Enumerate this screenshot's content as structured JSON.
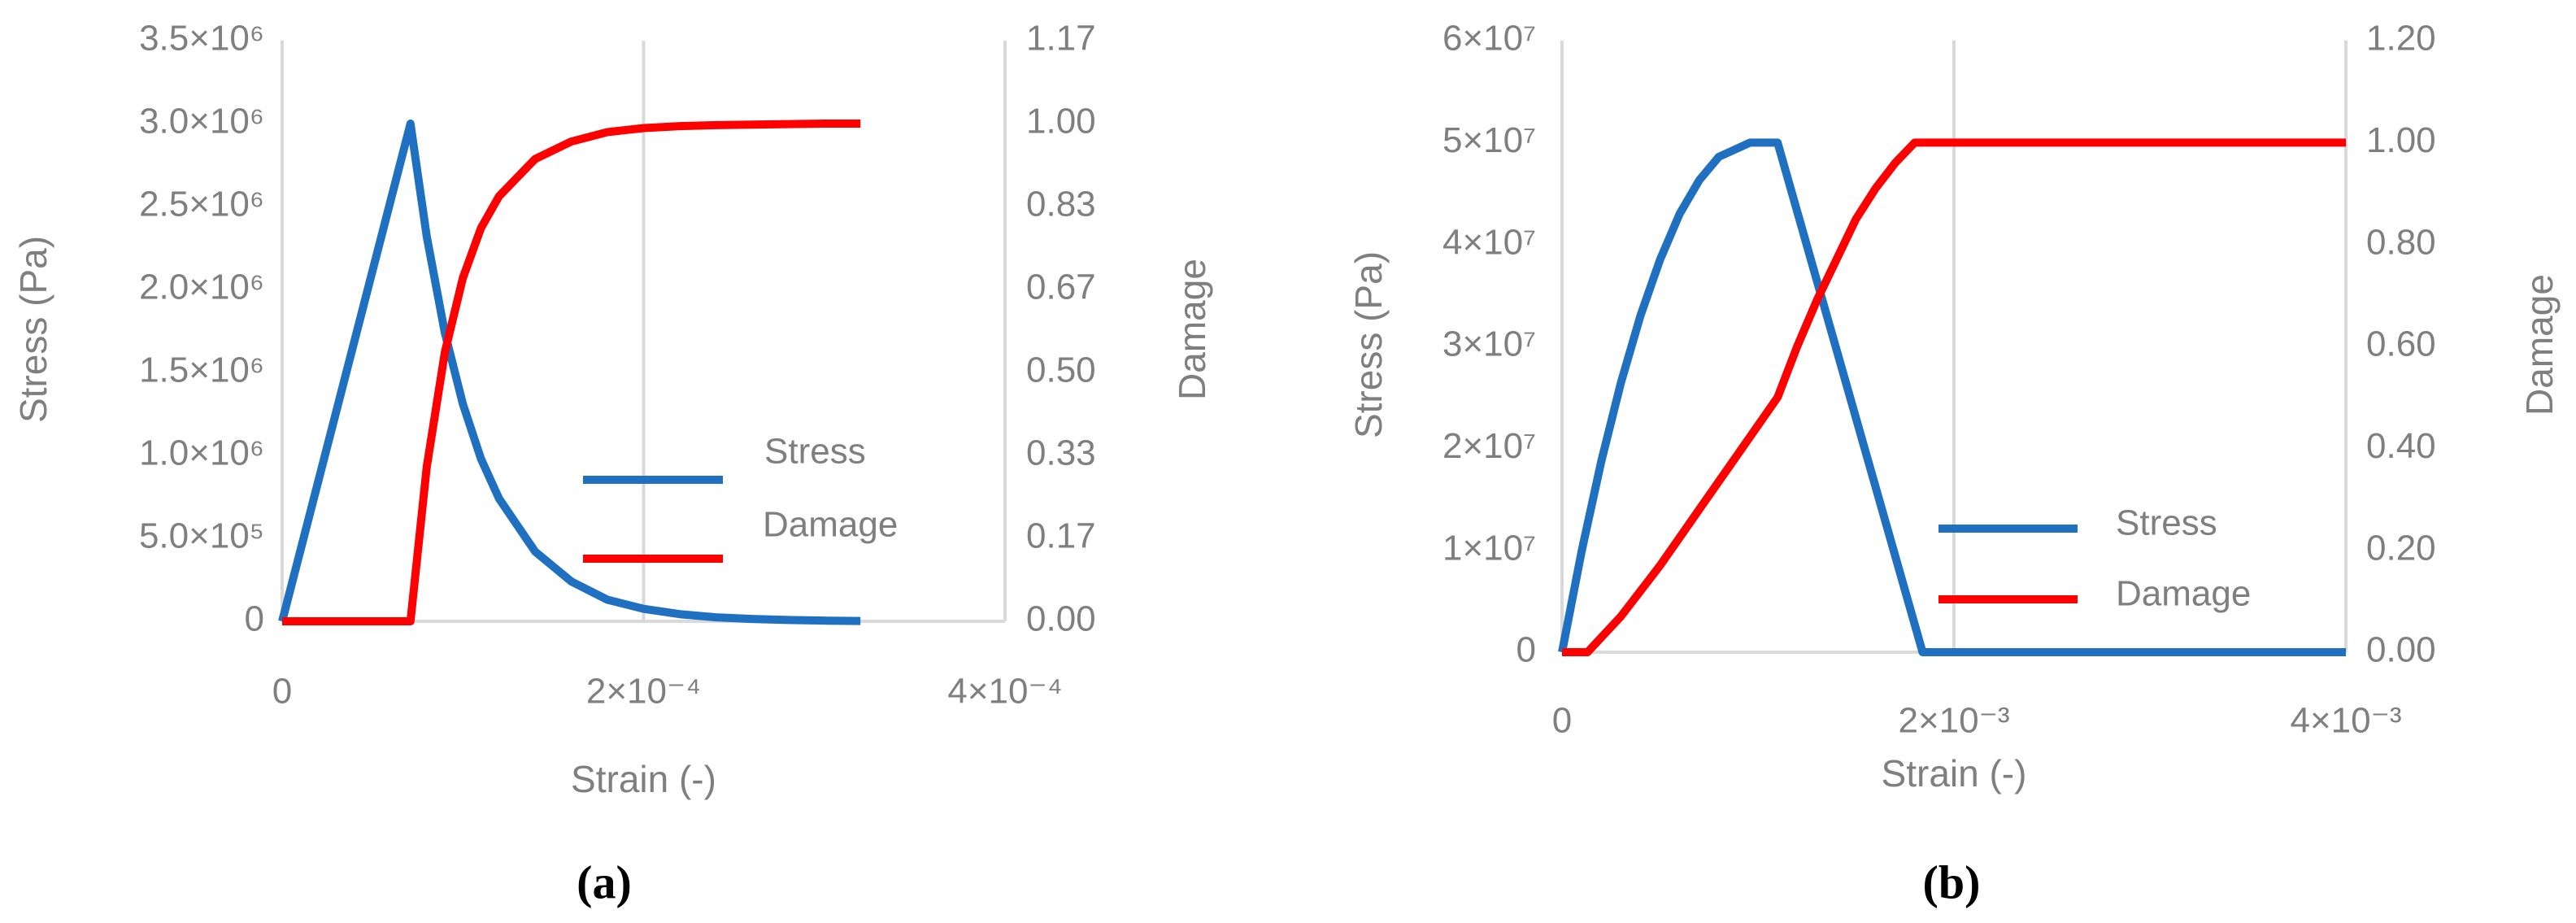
{
  "chart_data": [
    {
      "type": "line",
      "panel_label": "(a)",
      "xlabel": "Strain (-)",
      "ylabel": "Stress (Pa)",
      "y2label": "Damage",
      "xlim": [
        0,
        0.0004
      ],
      "xticks": [
        0,
        {
          "value": 0.0002,
          "label": "2×10⁻⁴"
        },
        {
          "value": 0.0004,
          "label": "4×10⁻⁴"
        }
      ],
      "ylim": [
        0,
        3500000
      ],
      "yticks": [
        0,
        {
          "value": 500000,
          "label": "5.0×10⁵"
        },
        {
          "value": 1000000,
          "label": "1.0×10⁶"
        },
        {
          "value": 1500000,
          "label": "1.5×10⁶"
        },
        {
          "value": 2000000,
          "label": "2.0×10⁶"
        },
        {
          "value": 2500000,
          "label": "2.5×10⁶"
        },
        {
          "value": 3000000,
          "label": "3.0×10⁶"
        },
        {
          "value": 3500000,
          "label": "3.5×10⁶"
        }
      ],
      "y2lim": [
        0,
        1.1667
      ],
      "y2ticks": [
        {
          "value": 0,
          "label": "0.00"
        },
        {
          "value": 0.1667,
          "label": "0.17"
        },
        {
          "value": 0.3333,
          "label": "0.33"
        },
        {
          "value": 0.5,
          "label": "0.50"
        },
        {
          "value": 0.6667,
          "label": "0.67"
        },
        {
          "value": 0.8333,
          "label": "0.83"
        },
        {
          "value": 1,
          "label": "1.00"
        },
        {
          "value": 1.1667,
          "label": "1.17"
        }
      ],
      "grid": "x",
      "series": [
        {
          "name": "Stress",
          "color": "#1f70c1",
          "x": [
            0,
            7.1e-05,
            8e-05,
            9e-05,
            0.0001,
            0.00011,
            0.00012,
            0.00014,
            0.00016,
            0.00018,
            0.0002,
            0.00022,
            0.00024,
            0.00026,
            0.00028,
            0.0003,
            0.00032
          ],
          "values": [
            0,
            3000000,
            2320000,
            1740000,
            1310000,
            980000,
            740000,
            420000,
            240000,
            130000,
            75000,
            43000,
            24000,
            14000,
            8000,
            4000,
            2000
          ]
        },
        {
          "name": "Damage",
          "color": "#ff0000",
          "axis": "y2",
          "x": [
            0,
            7.1e-05,
            8e-05,
            9e-05,
            0.0001,
            0.00011,
            0.00012,
            0.00014,
            0.00016,
            0.00018,
            0.0002,
            0.00022,
            0.00024,
            0.00026,
            0.00028,
            0.0003,
            0.00032
          ],
          "values": [
            0,
            0,
            0.31,
            0.54,
            0.69,
            0.79,
            0.854,
            0.929,
            0.964,
            0.983,
            0.991,
            0.995,
            0.997,
            0.998,
            0.999,
            1,
            1
          ]
        }
      ]
    },
    {
      "type": "line",
      "panel_label": "(b)",
      "xlabel": "Strain (-)",
      "ylabel": "Stress (Pa)",
      "y2label": "Damage",
      "xlim": [
        0,
        0.004
      ],
      "xticks": [
        0,
        {
          "value": 0.002,
          "label": "2×10⁻³"
        },
        {
          "value": 0.004,
          "label": "4×10⁻³"
        }
      ],
      "ylim": [
        0,
        60000000
      ],
      "yticks": [
        0,
        {
          "value": 10000000,
          "label": "1×10⁷"
        },
        {
          "value": 20000000,
          "label": "2×10⁷"
        },
        {
          "value": 30000000,
          "label": "3×10⁷"
        },
        {
          "value": 40000000,
          "label": "4×10⁷"
        },
        {
          "value": 50000000,
          "label": "5×10⁷"
        },
        {
          "value": 60000000,
          "label": "6×10⁷"
        }
      ],
      "y2lim": [
        0,
        1.2
      ],
      "y2ticks": [
        {
          "value": 0,
          "label": "0.00"
        },
        {
          "value": 0.2,
          "label": "0.20"
        },
        {
          "value": 0.4,
          "label": "0.40"
        },
        {
          "value": 0.6,
          "label": "0.60"
        },
        {
          "value": 0.8,
          "label": "0.80"
        },
        {
          "value": 1,
          "label": "1.00"
        },
        {
          "value": 1.2,
          "label": "1.20"
        }
      ],
      "grid": "x",
      "series": [
        {
          "name": "Stress",
          "color": "#1f70c1",
          "x": [
            0,
            0.0001,
            0.0002,
            0.0003,
            0.0004,
            0.0005,
            0.0006,
            0.0007,
            0.0008,
            0.00096,
            0.0011,
            0.00184,
            0.004
          ],
          "values": [
            0,
            9900000,
            18700000,
            26400000,
            33000000,
            38500000,
            43000000,
            46300000,
            48600000,
            50000000,
            50000000,
            0,
            0
          ]
        },
        {
          "name": "Damage",
          "color": "#ff0000",
          "axis": "y2",
          "x": [
            0,
            0.00013,
            0.0003,
            0.0005,
            0.0007,
            0.0009,
            0.0011,
            0.0012,
            0.0013,
            0.0014,
            0.0015,
            0.0016,
            0.0017,
            0.0018,
            0.004
          ],
          "values": [
            0,
            0,
            0.07,
            0.17,
            0.28,
            0.39,
            0.5,
            0.6,
            0.69,
            0.77,
            0.85,
            0.91,
            0.96,
            1,
            1
          ]
        }
      ]
    }
  ]
}
